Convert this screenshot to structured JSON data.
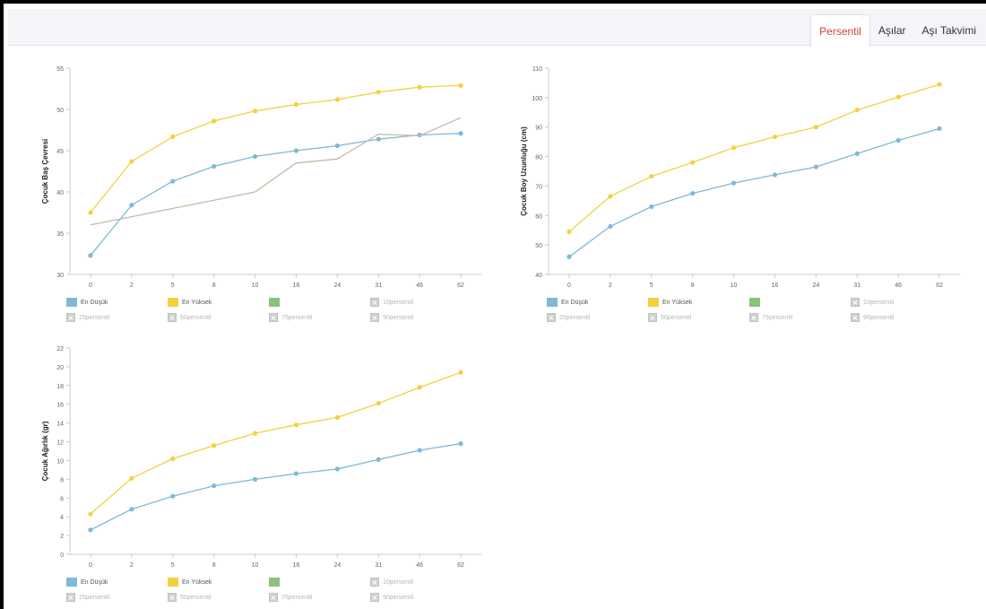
{
  "tabs": [
    {
      "label": "Persentil",
      "active": true
    },
    {
      "label": "Aşılar",
      "active": false
    },
    {
      "label": "Aşı Takvimi",
      "active": false
    }
  ],
  "colors": {
    "en_dusuk": "#7fb8d8",
    "en_yuksek": "#f4d03f",
    "green": "#8cc17a",
    "third_series": "#c8b8a6",
    "tab_active_text": "#c9433f"
  },
  "legend": [
    {
      "label": "En Düşük",
      "type": "swatch",
      "color": "#7fb8d8",
      "disabled": false
    },
    {
      "label": "En Yüksek",
      "type": "swatch",
      "color": "#f4d03f",
      "disabled": false
    },
    {
      "label": "",
      "type": "swatch",
      "color": "#8cc17a",
      "disabled": false
    },
    {
      "label": "10persentil",
      "type": "x",
      "disabled": true
    },
    {
      "label": "25persentil",
      "type": "x",
      "disabled": true
    },
    {
      "label": "50persentil",
      "type": "x",
      "disabled": true
    },
    {
      "label": "75persentil",
      "type": "x",
      "disabled": true
    },
    {
      "label": "90persentil",
      "type": "x",
      "disabled": true
    }
  ],
  "chart_data": [
    {
      "type": "line",
      "ylabel": "Çocuk Baş Çevresi",
      "xlabel": "",
      "categories": [
        "0",
        "2",
        "5",
        "8",
        "10",
        "16",
        "24",
        "31",
        "46",
        "62"
      ],
      "ylim": [
        30,
        55
      ],
      "yticks": [
        30,
        35,
        40,
        45,
        50,
        55
      ],
      "series": [
        {
          "name": "En Düşük",
          "color": "#7fb8d8",
          "markers": true,
          "values": [
            32.3,
            38.4,
            41.3,
            43.1,
            44.3,
            45.0,
            45.6,
            46.4,
            46.9,
            47.1
          ]
        },
        {
          "name": "En Yüksek",
          "color": "#f4d03f",
          "markers": true,
          "values": [
            37.5,
            43.7,
            46.7,
            48.6,
            49.8,
            50.6,
            51.2,
            52.1,
            52.7,
            52.9
          ]
        },
        {
          "color": "#c8b8a6",
          "markers": false,
          "values": [
            36.0,
            37.0,
            38.0,
            39.0,
            40.0,
            43.5,
            44.0,
            47.0,
            46.8,
            49.0
          ]
        }
      ]
    },
    {
      "type": "line",
      "ylabel": "Çocuk Boy Uzunluğu (cm)",
      "xlabel": "",
      "categories": [
        "0",
        "2",
        "5",
        "8",
        "10",
        "16",
        "24",
        "31",
        "46",
        "62"
      ],
      "ylim": [
        40,
        110
      ],
      "yticks": [
        40,
        50,
        60,
        70,
        80,
        90,
        100,
        110
      ],
      "series": [
        {
          "name": "En Düşük",
          "color": "#7fb8d8",
          "markers": true,
          "values": [
            46.0,
            56.3,
            63.0,
            67.5,
            71.0,
            73.8,
            76.5,
            81.0,
            85.5,
            89.5
          ]
        },
        {
          "name": "En Yüksek",
          "color": "#f4d03f",
          "markers": true,
          "values": [
            54.5,
            66.5,
            73.3,
            78.0,
            83.0,
            86.7,
            90.0,
            95.8,
            100.2,
            104.5
          ]
        }
      ]
    },
    {
      "type": "line",
      "ylabel": "Çocuk Ağırlık (gr)",
      "xlabel": "",
      "categories": [
        "0",
        "2",
        "5",
        "8",
        "10",
        "16",
        "24",
        "31",
        "46",
        "62"
      ],
      "ylim": [
        0,
        22
      ],
      "yticks": [
        0,
        2,
        4,
        6,
        8,
        10,
        12,
        14,
        16,
        18,
        20,
        22
      ],
      "series": [
        {
          "name": "En Düşük",
          "color": "#7fb8d8",
          "markers": true,
          "values": [
            2.6,
            4.8,
            6.2,
            7.3,
            8.0,
            8.6,
            9.1,
            10.1,
            11.1,
            11.8
          ]
        },
        {
          "name": "En Yüksek",
          "color": "#f4d03f",
          "markers": true,
          "values": [
            4.3,
            8.1,
            10.2,
            11.6,
            12.9,
            13.8,
            14.6,
            16.1,
            17.8,
            19.4
          ]
        }
      ]
    }
  ]
}
